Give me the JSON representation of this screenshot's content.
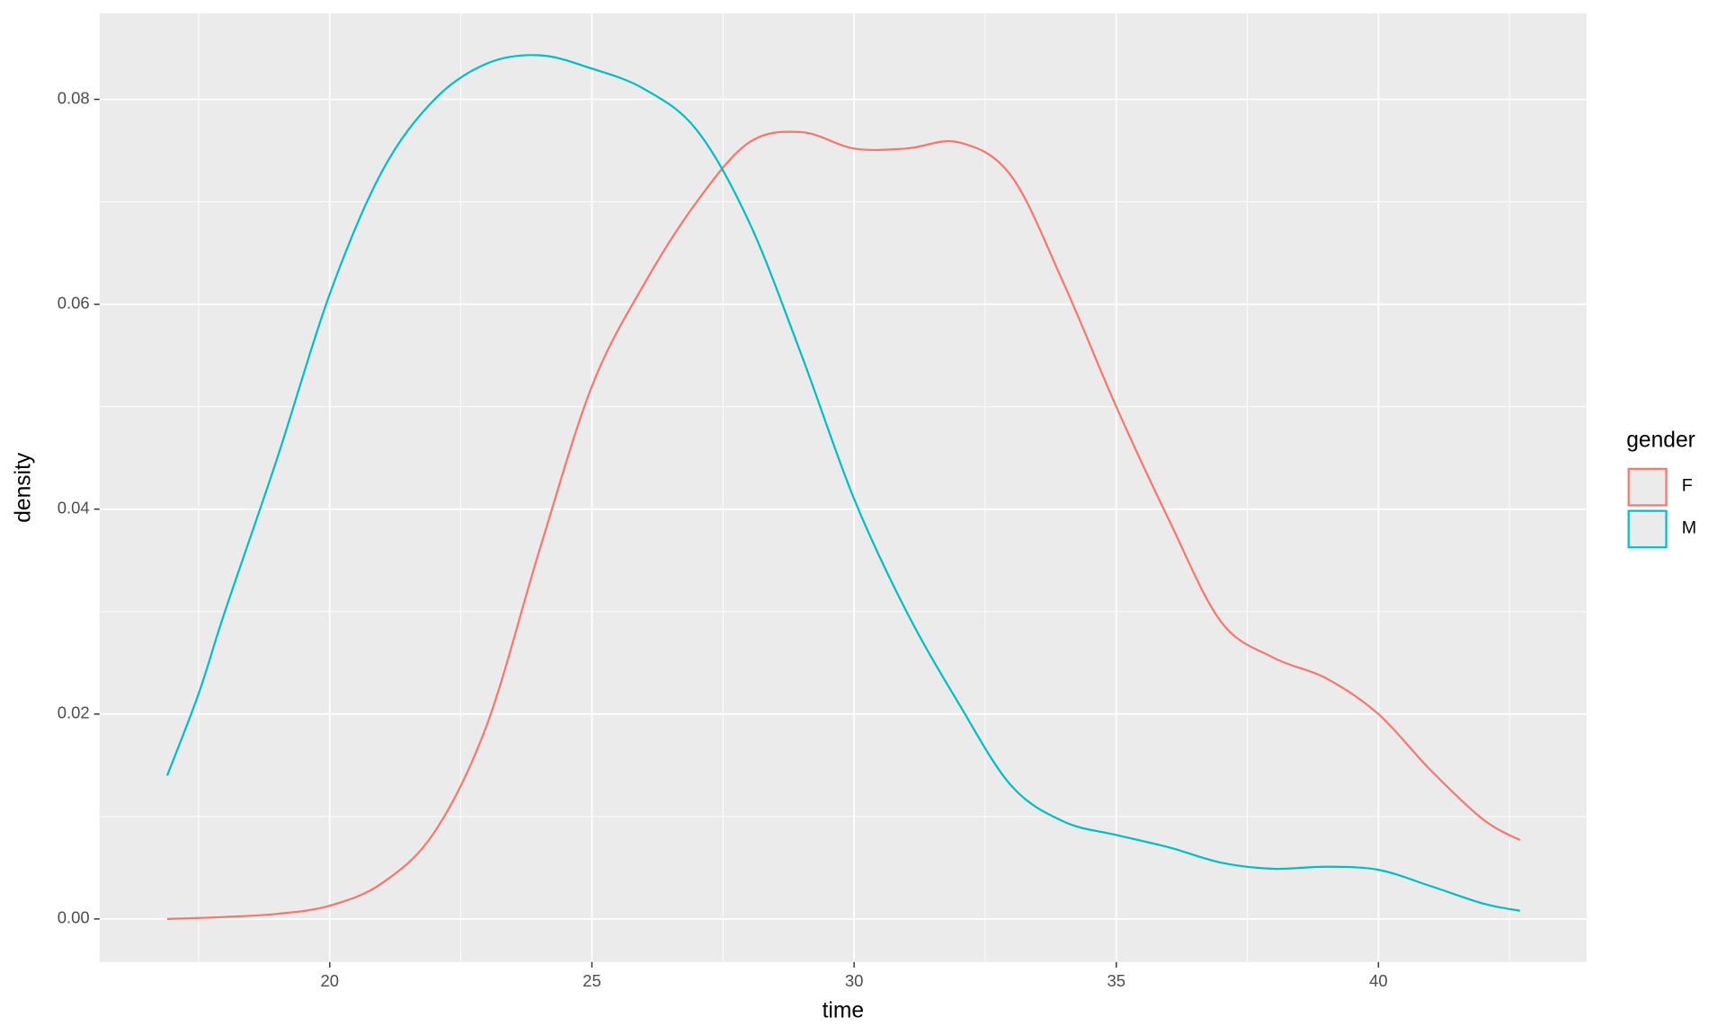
{
  "chart_data": {
    "type": "line",
    "x_label": "time",
    "y_label": "density",
    "legend_title": "gender",
    "x": [
      16.9,
      17.5,
      18,
      19,
      20,
      21,
      22,
      23,
      24,
      25,
      26,
      27,
      28,
      29,
      30,
      31,
      32,
      33,
      34,
      35,
      36,
      37,
      38,
      39,
      40,
      41,
      42,
      42.7
    ],
    "series": [
      {
        "name": "F",
        "color": "#f8766d",
        "values": [
          0,
          0.0001,
          0.0002,
          0.0005,
          0.0013,
          0.0035,
          0.0085,
          0.019,
          0.036,
          0.052,
          0.062,
          0.07,
          0.0758,
          0.0768,
          0.0752,
          0.0752,
          0.0758,
          0.0725,
          0.062,
          0.05,
          0.039,
          0.029,
          0.0255,
          0.0235,
          0.02,
          0.0145,
          0.0097,
          0.0077
        ]
      },
      {
        "name": "M",
        "color": "#00bfc4",
        "values": [
          0.014,
          0.022,
          0.03,
          0.045,
          0.061,
          0.073,
          0.08,
          0.0835,
          0.0843,
          0.083,
          0.081,
          0.077,
          0.068,
          0.055,
          0.041,
          0.03,
          0.021,
          0.013,
          0.0095,
          0.0082,
          0.007,
          0.0055,
          0.0049,
          0.0051,
          0.0048,
          0.0032,
          0.0015,
          0.0008
        ]
      }
    ],
    "xlim": [
      15.61,
      43.97
    ],
    "ylim": [
      -0.0042,
      0.0884
    ],
    "xticks": [
      20,
      25,
      30,
      35,
      40
    ],
    "yticks": [
      {
        "value": 0,
        "label": "0.00"
      },
      {
        "value": 0.02,
        "label": "0.02"
      },
      {
        "value": 0.04,
        "label": "0.04"
      },
      {
        "value": 0.06,
        "label": "0.06"
      },
      {
        "value": 0.08,
        "label": "0.08"
      }
    ],
    "grid": true,
    "legend": "right"
  }
}
